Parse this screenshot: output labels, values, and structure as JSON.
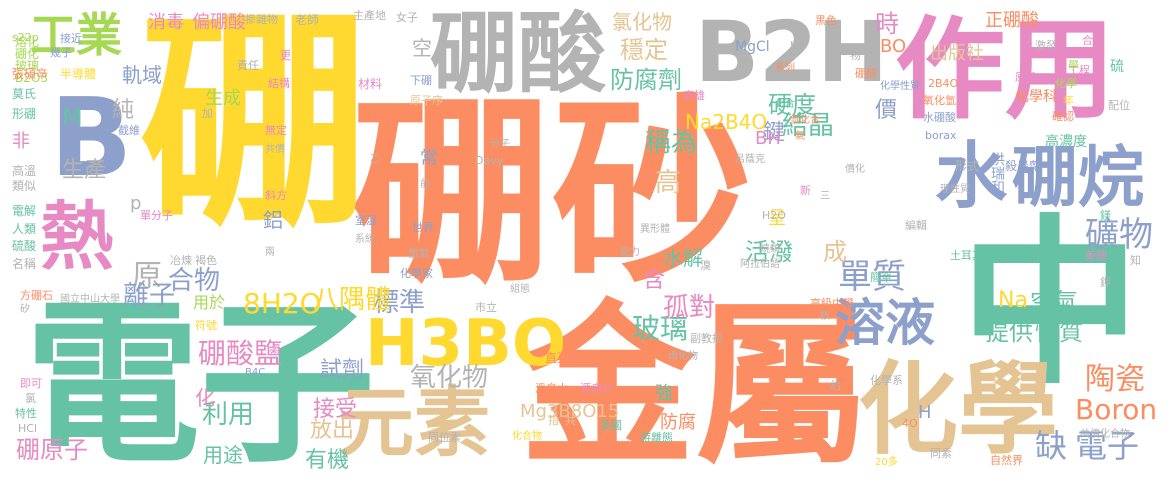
{
  "palette": {
    "orange": "#fc8d62",
    "yellow": "#ffd92f",
    "green": "#66c2a5",
    "blue": "#8da0cb",
    "pink": "#e78ac3",
    "grey": "#b3b3b3",
    "tan": "#e5c494",
    "lime": "#a6d854"
  },
  "words": [
    {
      "text": "硼砂",
      "color": "orange"
    },
    {
      "text": "硼",
      "color": "yellow"
    },
    {
      "text": "金屬",
      "color": "orange"
    },
    {
      "text": "電子",
      "color": "green"
    },
    {
      "text": "中",
      "color": "green"
    },
    {
      "text": "作用",
      "color": "pink"
    },
    {
      "text": "化學",
      "color": "tan"
    },
    {
      "text": "B",
      "color": "blue"
    },
    {
      "text": "硼酸",
      "color": "grey"
    },
    {
      "text": "B2H",
      "color": "grey"
    },
    {
      "text": "水",
      "color": "blue"
    },
    {
      "text": "硼烷",
      "color": "blue"
    },
    {
      "text": "熱",
      "color": "pink"
    },
    {
      "text": "元素",
      "color": "tan"
    },
    {
      "text": "H3BO",
      "color": "yellow"
    },
    {
      "text": "工業",
      "color": "lime"
    },
    {
      "text": "溶液",
      "color": "blue"
    },
    {
      "text": "M",
      "color": "green"
    },
    {
      "text": "單質",
      "color": "blue"
    },
    {
      "text": "礦物",
      "color": "blue"
    },
    {
      "text": "缺",
      "color": "blue"
    },
    {
      "text": "電子",
      "color": "blue"
    },
    {
      "text": "Boron",
      "color": "orange"
    },
    {
      "text": "陶瓷",
      "color": "orange"
    },
    {
      "text": "原",
      "color": "grey"
    },
    {
      "text": "合物",
      "color": "blue"
    },
    {
      "text": "離子",
      "color": "blue"
    },
    {
      "text": "硼酸鹽",
      "color": "pink"
    },
    {
      "text": "氧化物",
      "color": "grey"
    },
    {
      "text": "標準",
      "color": "blue"
    },
    {
      "text": "玻璃",
      "color": "green"
    },
    {
      "text": "硼原子",
      "color": "pink"
    },
    {
      "text": "8H2O",
      "color": "yellow"
    },
    {
      "text": "八隅體",
      "color": "yellow"
    },
    {
      "text": "孤對",
      "color": "pink"
    },
    {
      "text": "利用",
      "color": "green"
    },
    {
      "text": "稱為",
      "color": "green"
    },
    {
      "text": "高",
      "color": "tan"
    },
    {
      "text": "穩定",
      "color": "tan"
    },
    {
      "text": "防腐劑",
      "color": "green"
    },
    {
      "text": "硬度",
      "color": "green"
    },
    {
      "text": "結晶",
      "color": "green"
    },
    {
      "text": "鍵",
      "color": "blue"
    },
    {
      "text": "活潑",
      "color": "green"
    },
    {
      "text": "成",
      "color": "tan"
    },
    {
      "text": "空氣",
      "color": "green"
    },
    {
      "text": "性質",
      "color": "green"
    },
    {
      "text": "提供",
      "color": "green"
    },
    {
      "text": "Na",
      "color": "yellow"
    },
    {
      "text": "試劑",
      "color": "blue"
    },
    {
      "text": "接受",
      "color": "pink"
    },
    {
      "text": "放出",
      "color": "tan"
    },
    {
      "text": "有機",
      "color": "green"
    },
    {
      "text": "用途",
      "color": "green"
    },
    {
      "text": "生產",
      "color": "grey"
    },
    {
      "text": "純",
      "color": "grey"
    },
    {
      "text": "生成",
      "color": "lime"
    },
    {
      "text": "軌域",
      "color": "blue"
    },
    {
      "text": "鋁",
      "color": "blue"
    },
    {
      "text": "水解",
      "color": "green"
    },
    {
      "text": "含",
      "color": "pink"
    },
    {
      "text": "價",
      "color": "blue"
    },
    {
      "text": "時",
      "color": "pink"
    },
    {
      "text": "出版社",
      "color": "tan"
    },
    {
      "text": "正硼酸",
      "color": "orange"
    },
    {
      "text": "Na2B4O",
      "color": "yellow"
    },
    {
      "text": "BH",
      "color": "pink"
    },
    {
      "text": "氯化物",
      "color": "tan"
    },
    {
      "text": "消毒",
      "color": "pink"
    },
    {
      "text": "偏硼酸",
      "color": "pink"
    },
    {
      "text": "Mg3B8O15",
      "color": "tan"
    },
    {
      "text": "強",
      "color": "green"
    },
    {
      "text": "防腐",
      "color": "orange"
    },
    {
      "text": "化",
      "color": "pink"
    },
    {
      "text": "常",
      "color": "blue"
    },
    {
      "text": "K",
      "color": "orange"
    },
    {
      "text": "空",
      "color": "grey"
    },
    {
      "text": "p",
      "color": "grey"
    },
    {
      "text": "非",
      "color": "pink"
    },
    {
      "text": "呈",
      "color": "yellow"
    },
    {
      "text": "H",
      "color": "blue"
    },
    {
      "text": "用於",
      "color": "lime"
    },
    {
      "text": "BO",
      "color": "orange"
    },
    {
      "text": "洪瑞和",
      "color": "blue"
    },
    {
      "text": "形式",
      "color": "grey"
    },
    {
      "text": "殺蟲劑",
      "color": "blue"
    },
    {
      "text": "化學科",
      "color": "orange"
    },
    {
      "text": "高濃度",
      "color": "green"
    },
    {
      "text": "熔化",
      "color": "lime"
    },
    {
      "text": "硼化",
      "color": "lime"
    },
    {
      "text": "玻璃",
      "color": "lime"
    },
    {
      "text": "B2O3",
      "color": "lime"
    },
    {
      "text": "s22p",
      "color": "lime"
    },
    {
      "text": "幾子",
      "color": "blue"
    },
    {
      "text": "接近",
      "color": "blue"
    },
    {
      "text": "張碩辛",
      "color": "orange"
    },
    {
      "text": "半導體",
      "color": "yellow"
    },
    {
      "text": "摻雜物",
      "color": "grey"
    },
    {
      "text": "老師",
      "color": "grey"
    },
    {
      "text": "主產地",
      "color": "grey"
    },
    {
      "text": "女子",
      "color": "grey"
    },
    {
      "text": "責任",
      "color": "grey"
    },
    {
      "text": "材料",
      "color": "pink"
    },
    {
      "text": "原子序",
      "color": "tan"
    },
    {
      "text": "下硼",
      "color": "blue"
    },
    {
      "text": "結構",
      "color": "pink"
    },
    {
      "text": "更",
      "color": "pink"
    },
    {
      "text": "加",
      "color": "grey"
    },
    {
      "text": "系列",
      "color": "orange"
    },
    {
      "text": "MgCl",
      "color": "blue"
    },
    {
      "text": "HF",
      "color": "grey"
    },
    {
      "text": "黑色",
      "color": "orange"
    },
    {
      "text": "2B4O",
      "color": "orange"
    },
    {
      "text": "化學性質",
      "color": "blue"
    },
    {
      "text": "氧化氫",
      "color": "orange"
    },
    {
      "text": "水硼酸",
      "color": "blue"
    },
    {
      "text": "borax",
      "color": "blue"
    },
    {
      "text": "原子",
      "color": "pink"
    },
    {
      "text": "工程",
      "color": "pink"
    },
    {
      "text": "合成",
      "color": "pink"
    },
    {
      "text": "硫",
      "color": "green"
    },
    {
      "text": "激發",
      "color": "grey"
    },
    {
      "text": "配位",
      "color": "grey"
    },
    {
      "text": "年",
      "color": "yellow"
    },
    {
      "text": "確認",
      "color": "orange"
    },
    {
      "text": "莫氏",
      "color": "green"
    },
    {
      "text": "形硼",
      "color": "green"
    },
    {
      "text": "高溫",
      "color": "grey"
    },
    {
      "text": "類似",
      "color": "grey"
    },
    {
      "text": "電解",
      "color": "green"
    },
    {
      "text": "人類",
      "color": "green"
    },
    {
      "text": "硫酸",
      "color": "green"
    },
    {
      "text": "名稱",
      "color": "grey"
    },
    {
      "text": "截維",
      "color": "blue"
    },
    {
      "text": "無定",
      "color": "pink"
    },
    {
      "text": "共價",
      "color": "grey"
    },
    {
      "text": "斜方",
      "color": "pink"
    },
    {
      "text": "控制",
      "color": "orange"
    },
    {
      "text": "室溫",
      "color": "blue"
    },
    {
      "text": "系統",
      "color": "grey"
    },
    {
      "text": "冶煉",
      "color": "grey"
    },
    {
      "text": "褐色",
      "color": "grey"
    },
    {
      "text": "兩",
      "color": "grey"
    },
    {
      "text": "單分子",
      "color": "pink"
    },
    {
      "text": "符號",
      "color": "yellow"
    },
    {
      "text": "國立中山大學",
      "color": "grey"
    },
    {
      "text": "方硼石",
      "color": "orange"
    },
    {
      "text": "矽",
      "color": "grey"
    },
    {
      "text": "即可",
      "color": "pink"
    },
    {
      "text": "氯",
      "color": "grey"
    },
    {
      "text": "特性",
      "color": "green"
    },
    {
      "text": "HCl",
      "color": "grey"
    },
    {
      "text": "B4C",
      "color": "blue"
    },
    {
      "text": "化學家",
      "color": "blue"
    },
    {
      "text": "氫氣",
      "color": "grey"
    },
    {
      "text": "世界",
      "color": "blue"
    },
    {
      "text": "前",
      "color": "grey"
    },
    {
      "text": "乙",
      "color": "grey"
    },
    {
      "text": "Davy",
      "color": "grey"
    },
    {
      "text": "分子",
      "color": "grey"
    },
    {
      "text": "市立",
      "color": "grey"
    },
    {
      "text": "組態",
      "color": "grey"
    },
    {
      "text": "直至",
      "color": "orange"
    },
    {
      "text": "溫泉水",
      "color": "orange"
    },
    {
      "text": "源自於",
      "color": "pink"
    },
    {
      "text": "同位素",
      "color": "grey"
    },
    {
      "text": "指",
      "color": "tan"
    },
    {
      "text": "共",
      "color": "tan"
    },
    {
      "text": "化合物",
      "color": "yellow"
    },
    {
      "text": "英國",
      "color": "green"
    },
    {
      "text": "游離態",
      "color": "green"
    },
    {
      "text": "鹵化物",
      "color": "grey"
    },
    {
      "text": "副教授",
      "color": "grey"
    },
    {
      "text": "H2O",
      "color": "grey"
    },
    {
      "text": "異形體",
      "color": "grey"
    },
    {
      "text": "能力",
      "color": "grey"
    },
    {
      "text": "溴",
      "color": "grey"
    },
    {
      "text": "阿拉伯語",
      "color": "grey"
    },
    {
      "text": "呂蔭克",
      "color": "grey"
    },
    {
      "text": "新",
      "color": "pink"
    },
    {
      "text": "三",
      "color": "grey"
    },
    {
      "text": "高級中學",
      "color": "orange"
    },
    {
      "text": "核",
      "color": "grey"
    },
    {
      "text": "約",
      "color": "grey"
    },
    {
      "text": "化學系",
      "color": "grey"
    },
    {
      "text": "簡單",
      "color": "green"
    },
    {
      "text": "土耳其",
      "color": "green"
    },
    {
      "text": "美國",
      "color": "pink"
    },
    {
      "text": "鎂",
      "color": "green"
    },
    {
      "text": "鉀",
      "color": "grey"
    },
    {
      "text": "知",
      "color": "grey"
    },
    {
      "text": "同素",
      "color": "grey"
    },
    {
      "text": "4O",
      "color": "orange"
    },
    {
      "text": "自然界",
      "color": "orange"
    },
    {
      "text": "共價化合物",
      "color": "grey"
    },
    {
      "text": "20多",
      "color": "yellow"
    },
    {
      "text": "編輯",
      "color": "grey"
    },
    {
      "text": "氫化合",
      "color": "orange"
    },
    {
      "text": "氣",
      "color": "orange"
    },
    {
      "text": "理性質",
      "color": "grey"
    },
    {
      "text": "價化",
      "color": "grey"
    },
    {
      "text": "燒類",
      "color": "grey"
    },
    {
      "text": "高雄",
      "color": "pink"
    },
    {
      "text": "化學",
      "color": "lime"
    },
    {
      "text": "學",
      "color": "lime"
    },
    {
      "text": "化合",
      "color": "green"
    },
    {
      "text": "物",
      "color": "grey"
    },
    {
      "text": "硼酸",
      "color": "orange"
    }
  ]
}
